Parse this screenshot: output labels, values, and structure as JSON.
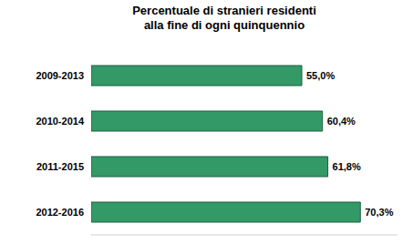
{
  "chart_data": {
    "type": "bar",
    "title": "Percentuale di stranieri residenti\nalla fine di ogni quinquennio",
    "orientation": "horizontal",
    "categories": [
      "2009-2013",
      "2010-2014",
      "2011-2015",
      "2012-2016"
    ],
    "values": [
      55.0,
      60.4,
      61.8,
      70.3
    ],
    "value_labels": [
      "55,0%",
      "60,4%",
      "61,8%",
      "70,3%"
    ],
    "data_labels": true,
    "color": "#339966",
    "xlim": [
      0,
      80
    ],
    "tick_labels": "y",
    "grid": false
  }
}
